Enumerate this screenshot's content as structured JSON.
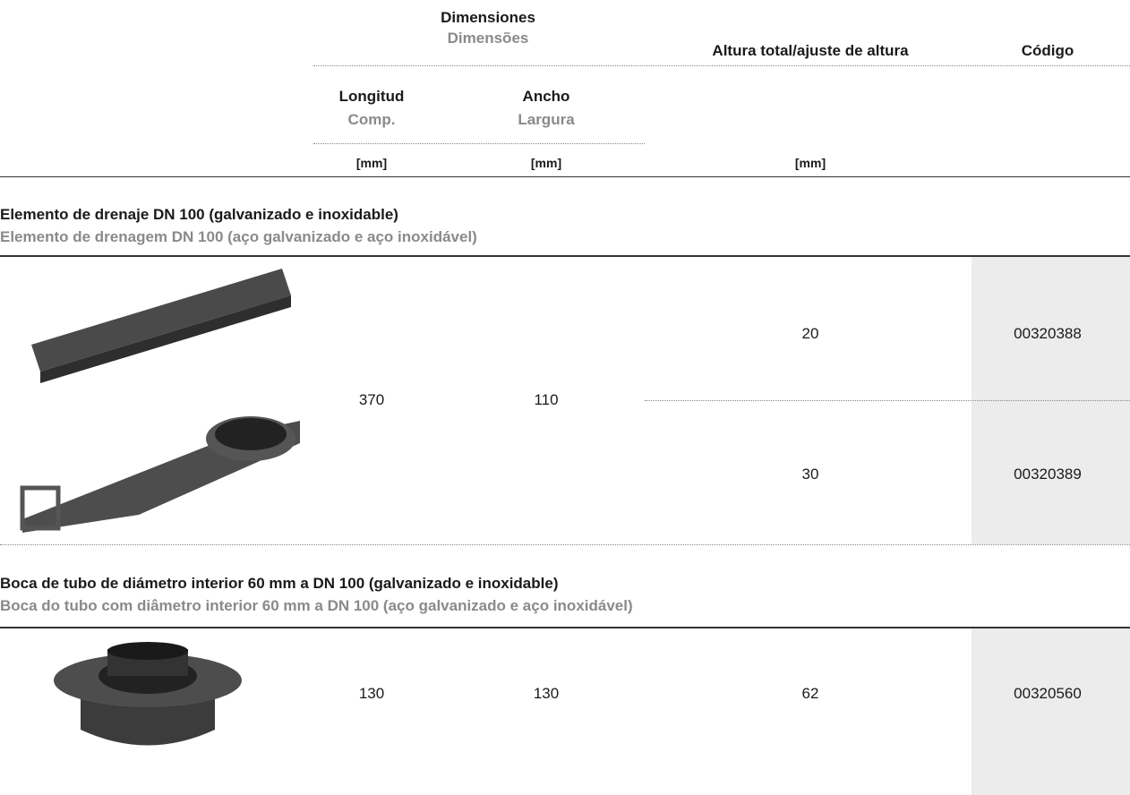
{
  "header": {
    "dimensions": {
      "es": "Dimensiones",
      "pt": "Dimensões"
    },
    "height": "Altura total/ajuste de altura",
    "code": "Código",
    "length": {
      "es": "Longitud",
      "pt": "Comp."
    },
    "width": {
      "es": "Ancho",
      "pt": "Largura"
    },
    "units": [
      "[mm]",
      "[mm]",
      "[mm]"
    ]
  },
  "sections": [
    {
      "title": "Elemento de drenaje DN 100 (galvanizado e inoxidable)",
      "subtitle": "Elemento de drenagem DN 100 (aço galvanizado e aço inoxidável)",
      "length": 370,
      "width": 110,
      "rows": [
        {
          "height": 20,
          "code": "00320388"
        },
        {
          "height": 30,
          "code": "00320389"
        }
      ]
    },
    {
      "title": "Boca de tubo de diámetro interior 60 mm a DN 100 (galvanizado e inoxidable)",
      "subtitle": "Boca do tubo com diâmetro interior 60 mm a DN 100 (aço galvanizado e aço inoxidável)",
      "length": 130,
      "width": 130,
      "rows": [
        {
          "height": 62,
          "code": "00320560"
        }
      ]
    }
  ]
}
